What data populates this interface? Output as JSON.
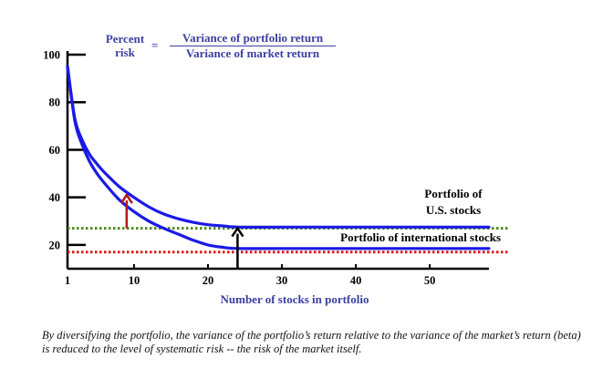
{
  "formula": {
    "lhs_line1": "Percent",
    "lhs_line2": "risk",
    "equals": "=",
    "numerator": "Variance of portfolio return",
    "denominator": "Variance of market return"
  },
  "caption": "By diversifying the portfolio, the variance of the portfolio’s return relative to the variance of the market’s return (beta) is reduced to the level of systematic risk -- the risk of the market itself.",
  "colors": {
    "curve": "#1a1ae6",
    "us_dotted": "#4f8a1e",
    "intl_dotted": "#e01818",
    "arrow_red": "#b01818",
    "arrow_black": "#000000",
    "xlabel": "#3a3fa0",
    "formula": "#3a3fa0"
  },
  "chart_data": {
    "type": "line",
    "xlabel": "Number of stocks in portfolio",
    "ylabel": "",
    "xlim": [
      1,
      58
    ],
    "ylim": [
      10,
      100
    ],
    "x_ticks": [
      1,
      10,
      20,
      30,
      40,
      50
    ],
    "y_ticks": [
      20,
      40,
      60,
      80,
      100
    ],
    "series": [
      {
        "name": "Portfolio of U.S. stocks",
        "label_line1": "Portfolio of",
        "label_line2": "U.S. stocks",
        "x": [
          1,
          2,
          3,
          4,
          5,
          6,
          8,
          10,
          12,
          14,
          16,
          18,
          20,
          22,
          24,
          30,
          40,
          50,
          58
        ],
        "y": [
          95,
          73,
          64,
          58,
          54,
          50.5,
          44.5,
          40,
          36,
          33,
          31,
          29.5,
          28.5,
          28,
          27.5,
          27.5,
          27.5,
          27.5,
          27.5
        ]
      },
      {
        "name": "Portfolio of international stocks",
        "label_line1": "Portfolio of international stocks",
        "x": [
          1,
          2,
          3,
          4,
          5,
          6,
          8,
          10,
          12,
          14,
          16,
          18,
          20,
          22,
          24,
          30,
          40,
          50,
          58
        ],
        "y": [
          95,
          72,
          62,
          55,
          50,
          46,
          39,
          34,
          30,
          27,
          24.5,
          22,
          20,
          19,
          18.5,
          18.5,
          18.5,
          18.5,
          18.5
        ]
      }
    ],
    "reference_lines": [
      {
        "name": "us-systematic-risk",
        "y": 27
      },
      {
        "name": "international-systematic-risk",
        "y": 17
      }
    ],
    "arrows": [
      {
        "name": "red-arrow",
        "x": 9,
        "y_from": 27,
        "y_to": 41
      },
      {
        "name": "black-arrow",
        "x": 24,
        "y_from": 10,
        "y_to": 27
      }
    ],
    "grid": false,
    "legend": "inline"
  }
}
